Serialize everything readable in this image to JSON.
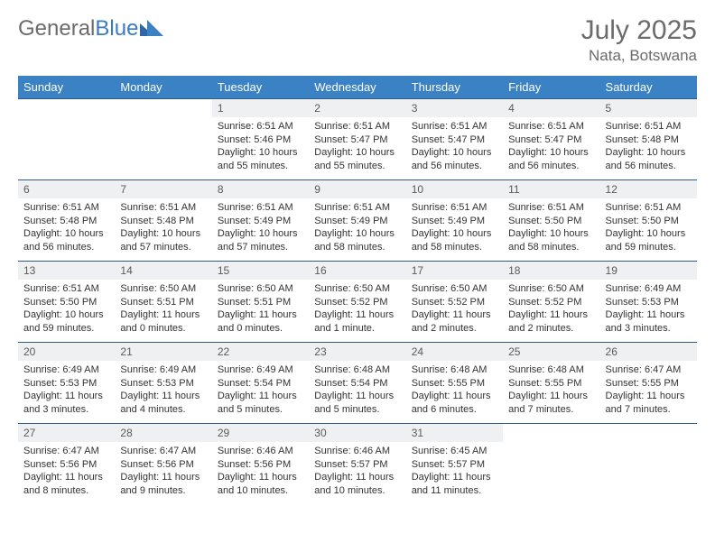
{
  "logo": {
    "text_gray": "General",
    "text_blue": "Blue"
  },
  "title": "July 2025",
  "location": "Nata, Botswana",
  "colors": {
    "header_bg": "#3b82c4",
    "header_text": "#ffffff",
    "daynum_bg": "#eef0f2",
    "row_border": "#2f5a8a",
    "title_color": "#6b6b6b",
    "logo_blue": "#3b7bbf"
  },
  "day_labels": [
    "Sunday",
    "Monday",
    "Tuesday",
    "Wednesday",
    "Thursday",
    "Friday",
    "Saturday"
  ],
  "weeks": [
    [
      null,
      null,
      {
        "n": "1",
        "sr": "6:51 AM",
        "ss": "5:46 PM",
        "dl": "10 hours and 55 minutes."
      },
      {
        "n": "2",
        "sr": "6:51 AM",
        "ss": "5:47 PM",
        "dl": "10 hours and 55 minutes."
      },
      {
        "n": "3",
        "sr": "6:51 AM",
        "ss": "5:47 PM",
        "dl": "10 hours and 56 minutes."
      },
      {
        "n": "4",
        "sr": "6:51 AM",
        "ss": "5:47 PM",
        "dl": "10 hours and 56 minutes."
      },
      {
        "n": "5",
        "sr": "6:51 AM",
        "ss": "5:48 PM",
        "dl": "10 hours and 56 minutes."
      }
    ],
    [
      {
        "n": "6",
        "sr": "6:51 AM",
        "ss": "5:48 PM",
        "dl": "10 hours and 56 minutes."
      },
      {
        "n": "7",
        "sr": "6:51 AM",
        "ss": "5:48 PM",
        "dl": "10 hours and 57 minutes."
      },
      {
        "n": "8",
        "sr": "6:51 AM",
        "ss": "5:49 PM",
        "dl": "10 hours and 57 minutes."
      },
      {
        "n": "9",
        "sr": "6:51 AM",
        "ss": "5:49 PM",
        "dl": "10 hours and 58 minutes."
      },
      {
        "n": "10",
        "sr": "6:51 AM",
        "ss": "5:49 PM",
        "dl": "10 hours and 58 minutes."
      },
      {
        "n": "11",
        "sr": "6:51 AM",
        "ss": "5:50 PM",
        "dl": "10 hours and 58 minutes."
      },
      {
        "n": "12",
        "sr": "6:51 AM",
        "ss": "5:50 PM",
        "dl": "10 hours and 59 minutes."
      }
    ],
    [
      {
        "n": "13",
        "sr": "6:51 AM",
        "ss": "5:50 PM",
        "dl": "10 hours and 59 minutes."
      },
      {
        "n": "14",
        "sr": "6:50 AM",
        "ss": "5:51 PM",
        "dl": "11 hours and 0 minutes."
      },
      {
        "n": "15",
        "sr": "6:50 AM",
        "ss": "5:51 PM",
        "dl": "11 hours and 0 minutes."
      },
      {
        "n": "16",
        "sr": "6:50 AM",
        "ss": "5:52 PM",
        "dl": "11 hours and 1 minute."
      },
      {
        "n": "17",
        "sr": "6:50 AM",
        "ss": "5:52 PM",
        "dl": "11 hours and 2 minutes."
      },
      {
        "n": "18",
        "sr": "6:50 AM",
        "ss": "5:52 PM",
        "dl": "11 hours and 2 minutes."
      },
      {
        "n": "19",
        "sr": "6:49 AM",
        "ss": "5:53 PM",
        "dl": "11 hours and 3 minutes."
      }
    ],
    [
      {
        "n": "20",
        "sr": "6:49 AM",
        "ss": "5:53 PM",
        "dl": "11 hours and 3 minutes."
      },
      {
        "n": "21",
        "sr": "6:49 AM",
        "ss": "5:53 PM",
        "dl": "11 hours and 4 minutes."
      },
      {
        "n": "22",
        "sr": "6:49 AM",
        "ss": "5:54 PM",
        "dl": "11 hours and 5 minutes."
      },
      {
        "n": "23",
        "sr": "6:48 AM",
        "ss": "5:54 PM",
        "dl": "11 hours and 5 minutes."
      },
      {
        "n": "24",
        "sr": "6:48 AM",
        "ss": "5:55 PM",
        "dl": "11 hours and 6 minutes."
      },
      {
        "n": "25",
        "sr": "6:48 AM",
        "ss": "5:55 PM",
        "dl": "11 hours and 7 minutes."
      },
      {
        "n": "26",
        "sr": "6:47 AM",
        "ss": "5:55 PM",
        "dl": "11 hours and 7 minutes."
      }
    ],
    [
      {
        "n": "27",
        "sr": "6:47 AM",
        "ss": "5:56 PM",
        "dl": "11 hours and 8 minutes."
      },
      {
        "n": "28",
        "sr": "6:47 AM",
        "ss": "5:56 PM",
        "dl": "11 hours and 9 minutes."
      },
      {
        "n": "29",
        "sr": "6:46 AM",
        "ss": "5:56 PM",
        "dl": "11 hours and 10 minutes."
      },
      {
        "n": "30",
        "sr": "6:46 AM",
        "ss": "5:57 PM",
        "dl": "11 hours and 10 minutes."
      },
      {
        "n": "31",
        "sr": "6:45 AM",
        "ss": "5:57 PM",
        "dl": "11 hours and 11 minutes."
      },
      null,
      null
    ]
  ],
  "labels": {
    "sunrise": "Sunrise:",
    "sunset": "Sunset:",
    "daylight": "Daylight:"
  }
}
